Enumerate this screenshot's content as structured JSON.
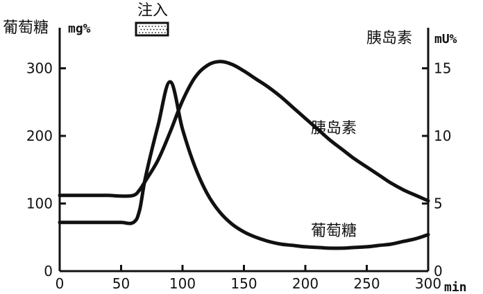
{
  "chart_data": {
    "type": "line",
    "x": [
      0,
      10,
      20,
      30,
      40,
      50,
      60,
      65,
      70,
      80,
      90,
      100,
      110,
      120,
      130,
      140,
      150,
      160,
      170,
      180,
      190,
      200,
      210,
      220,
      230,
      240,
      250,
      260,
      270,
      280,
      290,
      300
    ],
    "xlabel": "min",
    "xlim": [
      0,
      300
    ],
    "xticks": [
      "0",
      "50",
      "100",
      "150",
      "200",
      "250",
      "300"
    ],
    "y_left": {
      "label": "葡萄糖",
      "unit": "mg%",
      "ylim": [
        0,
        360
      ],
      "ticks": [
        "0",
        "100",
        "200",
        "300"
      ]
    },
    "y_right": {
      "label": "胰岛素",
      "unit": "mU%",
      "ylim": [
        0,
        18
      ],
      "ticks": [
        "0",
        "5",
        "10",
        "15"
      ]
    },
    "series": [
      {
        "name": "葡萄糖",
        "axis": "left",
        "values": [
          72,
          72,
          72,
          72,
          72,
          72,
          72,
          90,
          140,
          215,
          280,
          210,
          155,
          115,
          88,
          70,
          58,
          50,
          44,
          40,
          38,
          36,
          35,
          34,
          34,
          35,
          36,
          38,
          40,
          44,
          48,
          54
        ]
      },
      {
        "name": "胰岛素",
        "axis": "right",
        "values": [
          5.6,
          5.6,
          5.6,
          5.6,
          5.6,
          5.55,
          5.6,
          6.0,
          6.7,
          8.2,
          10.3,
          12.6,
          14.3,
          15.2,
          15.5,
          15.3,
          14.8,
          14.2,
          13.6,
          12.9,
          12.1,
          11.3,
          10.5,
          9.7,
          9.0,
          8.3,
          7.7,
          7.1,
          6.5,
          6.0,
          5.6,
          5.2
        ]
      }
    ],
    "annotations": [
      {
        "label": "注入",
        "legend_pattern": "dotted box"
      }
    ]
  }
}
